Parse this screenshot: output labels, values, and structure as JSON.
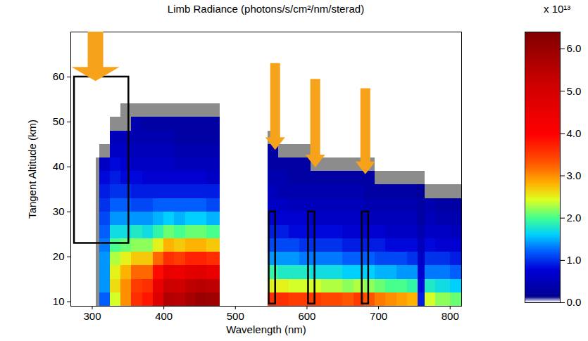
{
  "chart_data": {
    "type": "heatmap",
    "title": "Limb Radiance (photons/s/cm²/nm/sterad)",
    "x_label": "Wavelength (nm)",
    "y_label": "Tangent Altitude (km)",
    "xlim": [
      270,
      816
    ],
    "ylim": [
      9,
      70
    ],
    "xticks": [
      300,
      400,
      500,
      600,
      700,
      800
    ],
    "yticks": [
      10,
      20,
      30,
      40,
      50,
      60
    ],
    "altitude_edges": [
      9,
      12,
      15,
      18,
      21,
      24,
      27,
      30,
      33,
      36,
      39,
      42,
      45,
      48,
      51,
      54
    ],
    "columns": [
      {
        "x1": 305,
        "x2": 310,
        "top": 9,
        "gray_top": 42,
        "values": [
          null,
          null,
          null,
          null,
          null,
          null,
          null,
          null,
          null,
          null,
          null,
          null,
          null,
          null,
          null
        ]
      },
      {
        "x1": 310,
        "x2": 325,
        "top": 42,
        "gray_top": 45,
        "values": [
          1.2,
          1.4,
          1.4,
          1.4,
          1.3,
          1.2,
          1.1,
          1.0,
          0.9,
          0.8,
          0.6,
          null,
          null,
          null,
          null
        ]
      },
      {
        "x1": 325,
        "x2": 340,
        "top": 48,
        "gray_top": 51,
        "values": [
          2.4,
          2.6,
          2.5,
          2.3,
          2.0,
          1.7,
          1.4,
          1.2,
          1.0,
          0.9,
          0.8,
          0.6,
          0.5,
          null,
          null
        ]
      },
      {
        "x1": 340,
        "x2": 355,
        "top": 48,
        "gray_top": 54,
        "values": [
          3.0,
          3.0,
          2.8,
          2.5,
          2.1,
          1.7,
          1.4,
          1.2,
          1.0,
          0.8,
          0.7,
          0.6,
          0.5,
          null,
          null
        ]
      },
      {
        "x1": 355,
        "x2": 370,
        "top": 51,
        "gray_top": 54,
        "values": [
          3.6,
          3.5,
          3.2,
          2.7,
          2.2,
          1.8,
          1.4,
          1.1,
          0.9,
          0.8,
          0.6,
          0.5,
          0.4,
          0.4,
          null
        ]
      },
      {
        "x1": 370,
        "x2": 385,
        "top": 51,
        "gray_top": 54,
        "values": [
          3.8,
          3.6,
          3.2,
          2.7,
          2.2,
          1.7,
          1.4,
          1.1,
          0.9,
          0.7,
          0.6,
          0.5,
          0.4,
          0.3,
          null
        ]
      },
      {
        "x1": 385,
        "x2": 400,
        "top": 51,
        "gray_top": 54,
        "values": [
          4.8,
          4.5,
          3.9,
          3.2,
          2.5,
          1.9,
          1.5,
          1.2,
          0.9,
          0.7,
          0.6,
          0.5,
          0.4,
          0.3,
          null
        ]
      },
      {
        "x1": 400,
        "x2": 415,
        "top": 51,
        "gray_top": 54,
        "values": [
          5.6,
          5.2,
          4.5,
          3.6,
          2.8,
          2.1,
          1.6,
          1.2,
          0.9,
          0.7,
          0.6,
          0.5,
          0.4,
          0.3,
          null
        ]
      },
      {
        "x1": 415,
        "x2": 430,
        "top": 51,
        "gray_top": 54,
        "values": [
          5.5,
          5.1,
          4.4,
          3.5,
          2.7,
          2.0,
          1.5,
          1.2,
          0.9,
          0.7,
          0.5,
          0.4,
          0.3,
          0.3,
          null
        ]
      },
      {
        "x1": 430,
        "x2": 445,
        "top": 51,
        "gray_top": 54,
        "values": [
          5.8,
          5.4,
          4.6,
          3.7,
          2.8,
          2.1,
          1.6,
          1.2,
          0.9,
          0.7,
          0.5,
          0.4,
          0.3,
          0.3,
          null
        ]
      },
      {
        "x1": 445,
        "x2": 460,
        "top": 51,
        "gray_top": 54,
        "values": [
          6.0,
          5.5,
          4.7,
          3.7,
          2.8,
          2.1,
          1.6,
          1.2,
          0.9,
          0.7,
          0.5,
          0.4,
          0.3,
          0.3,
          null
        ]
      },
      {
        "x1": 460,
        "x2": 479,
        "top": 51,
        "gray_top": 54,
        "values": [
          5.9,
          5.4,
          4.5,
          3.6,
          2.7,
          2.0,
          1.5,
          1.1,
          0.9,
          0.6,
          0.5,
          0.4,
          0.3,
          0.3,
          null
        ]
      },
      {
        "x1": 545,
        "x2": 560,
        "top": 45,
        "gray_top": 48,
        "values": [
          3.6,
          2.5,
          1.9,
          1.4,
          1.1,
          0.9,
          0.7,
          0.6,
          0.5,
          0.4,
          0.3,
          0.3,
          null,
          null,
          null
        ]
      },
      {
        "x1": 560,
        "x2": 575,
        "top": 42,
        "gray_top": 45,
        "values": [
          3.6,
          2.5,
          1.8,
          1.4,
          1.1,
          0.9,
          0.7,
          0.6,
          0.4,
          0.4,
          0.3,
          null,
          null,
          null,
          null
        ]
      },
      {
        "x1": 575,
        "x2": 590,
        "top": 42,
        "gray_top": 45,
        "values": [
          3.5,
          2.4,
          1.8,
          1.4,
          1.1,
          0.8,
          0.7,
          0.5,
          0.4,
          0.3,
          0.3,
          null,
          null,
          null,
          null
        ]
      },
      {
        "x1": 590,
        "x2": 605,
        "top": 42,
        "gray_top": 45,
        "values": [
          3.5,
          2.4,
          1.8,
          1.3,
          1.0,
          0.8,
          0.7,
          0.5,
          0.4,
          0.3,
          0.3,
          null,
          null,
          null,
          null
        ]
      },
      {
        "x1": 605,
        "x2": 620,
        "top": 39,
        "gray_top": 42,
        "values": [
          3.5,
          2.4,
          1.7,
          1.3,
          1.0,
          0.8,
          0.6,
          0.5,
          0.4,
          0.3,
          null,
          null,
          null,
          null,
          null
        ]
      },
      {
        "x1": 620,
        "x2": 635,
        "top": 39,
        "gray_top": 42,
        "values": [
          3.4,
          2.3,
          1.7,
          1.3,
          1.0,
          0.8,
          0.6,
          0.5,
          0.4,
          0.3,
          null,
          null,
          null,
          null,
          null
        ]
      },
      {
        "x1": 635,
        "x2": 650,
        "top": 39,
        "gray_top": 42,
        "values": [
          3.4,
          2.3,
          1.7,
          1.3,
          1.0,
          0.8,
          0.6,
          0.5,
          0.4,
          0.3,
          null,
          null,
          null,
          null,
          null
        ]
      },
      {
        "x1": 650,
        "x2": 665,
        "top": 39,
        "gray_top": 42,
        "values": [
          3.3,
          2.2,
          1.6,
          1.2,
          0.9,
          0.7,
          0.6,
          0.5,
          0.4,
          0.3,
          null,
          null,
          null,
          null,
          null
        ]
      },
      {
        "x1": 665,
        "x2": 680,
        "top": 39,
        "gray_top": 42,
        "values": [
          3.5,
          2.3,
          1.6,
          1.2,
          0.9,
          0.7,
          0.6,
          0.5,
          0.4,
          0.3,
          null,
          null,
          null,
          null,
          null
        ]
      },
      {
        "x1": 680,
        "x2": 695,
        "top": 39,
        "gray_top": 42,
        "values": [
          3.3,
          2.2,
          1.6,
          1.2,
          0.9,
          0.7,
          0.5,
          0.4,
          0.3,
          0.3,
          null,
          null,
          null,
          null,
          null
        ]
      },
      {
        "x1": 695,
        "x2": 710,
        "top": 36,
        "gray_top": 39,
        "values": [
          3.1,
          2.1,
          1.5,
          1.1,
          0.9,
          0.7,
          0.5,
          0.4,
          0.3,
          null,
          null,
          null,
          null,
          null,
          null
        ]
      },
      {
        "x1": 710,
        "x2": 725,
        "top": 36,
        "gray_top": 39,
        "values": [
          3.0,
          2.0,
          1.5,
          1.1,
          0.8,
          0.6,
          0.5,
          0.4,
          0.3,
          null,
          null,
          null,
          null,
          null,
          null
        ]
      },
      {
        "x1": 725,
        "x2": 740,
        "top": 36,
        "gray_top": 39,
        "values": [
          2.9,
          2.0,
          1.4,
          1.1,
          0.8,
          0.6,
          0.5,
          0.4,
          0.3,
          null,
          null,
          null,
          null,
          null,
          null
        ]
      },
      {
        "x1": 740,
        "x2": 755,
        "top": 36,
        "gray_top": 39,
        "values": [
          2.8,
          1.9,
          1.4,
          1.0,
          0.8,
          0.6,
          0.5,
          0.4,
          0.3,
          null,
          null,
          null,
          null,
          null,
          null
        ]
      },
      {
        "x1": 755,
        "x2": 765,
        "top": 36,
        "gray_top": 39,
        "values": [
          0.9,
          0.8,
          0.7,
          0.6,
          0.5,
          0.4,
          0.3,
          0.3,
          0.2,
          null,
          null,
          null,
          null,
          null,
          null
        ]
      },
      {
        "x1": 765,
        "x2": 780,
        "top": 33,
        "gray_top": 36,
        "values": [
          2.4,
          1.8,
          1.3,
          1.0,
          0.8,
          0.6,
          0.5,
          0.4,
          null,
          null,
          null,
          null,
          null,
          null,
          null
        ]
      },
      {
        "x1": 780,
        "x2": 800,
        "top": 33,
        "gray_top": 36,
        "values": [
          2.2,
          1.7,
          1.3,
          1.0,
          0.7,
          0.6,
          0.4,
          0.3,
          null,
          null,
          null,
          null,
          null,
          null,
          null
        ]
      },
      {
        "x1": 800,
        "x2": 816,
        "top": 33,
        "gray_top": 36,
        "values": [
          2.1,
          1.6,
          1.2,
          0.9,
          0.7,
          0.5,
          0.4,
          0.3,
          null,
          null,
          null,
          null,
          null,
          null,
          null
        ]
      }
    ],
    "colorbar": {
      "range": [
        0,
        6.4
      ],
      "ticks": [
        0,
        1,
        2,
        3,
        4,
        5,
        6
      ],
      "label": "x 10¹³"
    },
    "boxes": [
      {
        "x1": 275,
        "x2": 351,
        "y1": 23,
        "y2": 60
      },
      {
        "x1": 547,
        "x2": 556,
        "y1": 9.5,
        "y2": 30
      },
      {
        "x1": 602,
        "x2": 611,
        "y1": 9.5,
        "y2": 30
      },
      {
        "x1": 677,
        "x2": 686,
        "y1": 9.5,
        "y2": 30
      }
    ],
    "arrows": [
      {
        "x": 305,
        "y_tip": 59,
        "y_tail": 70
      },
      {
        "x": 556,
        "y_tip": 43.7,
        "y_tail": 63
      },
      {
        "x": 612,
        "y_tip": 39.8,
        "y_tail": 59.5
      },
      {
        "x": 682,
        "y_tip": 38.3,
        "y_tail": 57.4
      }
    ]
  }
}
